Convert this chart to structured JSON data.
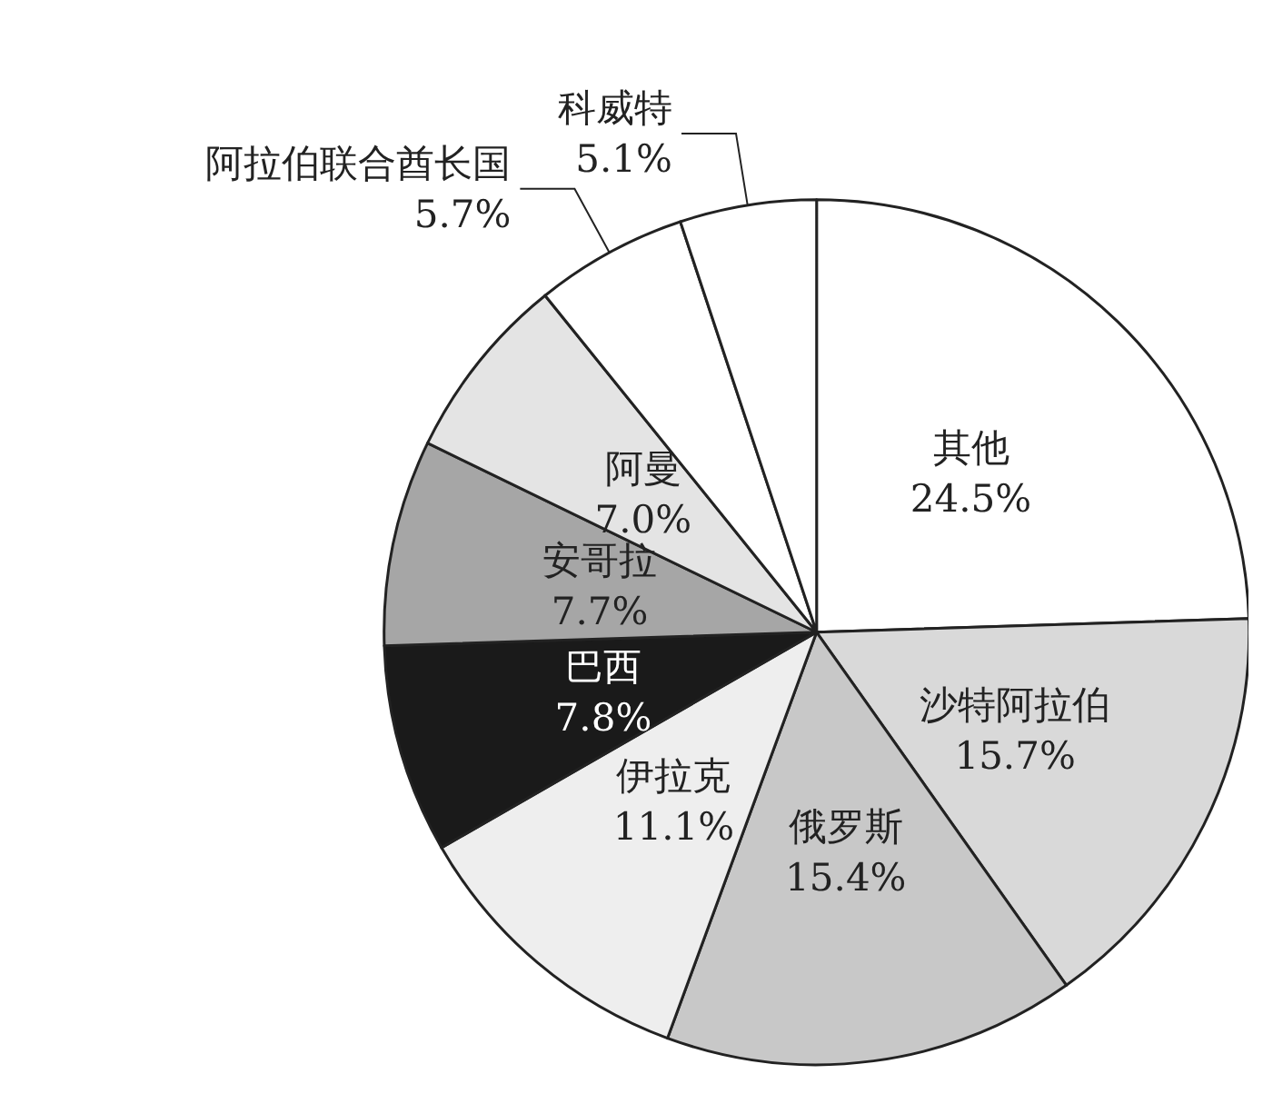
{
  "chart_data": {
    "type": "pie",
    "categories": [
      "其他",
      "沙特阿拉伯",
      "俄罗斯",
      "伊拉克",
      "巴西",
      "安哥拉",
      "阿曼",
      "阿拉伯联合酋长国",
      "科威特"
    ],
    "values": [
      24.5,
      15.7,
      15.4,
      11.1,
      7.8,
      7.7,
      7.0,
      5.7,
      5.1
    ],
    "value_labels": [
      "24.5%",
      "15.7%",
      "15.4%",
      "11.1%",
      "7.8%",
      "7.7%",
      "7.0%",
      "5.7%",
      "5.1%"
    ],
    "colors": [
      "#ffffff",
      "#d9d9d9",
      "#c8c8c8",
      "#eeeeee",
      "#1a1a1a",
      "#a6a6a6",
      "#e4e4e4",
      "#ffffff",
      "#ffffff"
    ],
    "legend": false
  }
}
